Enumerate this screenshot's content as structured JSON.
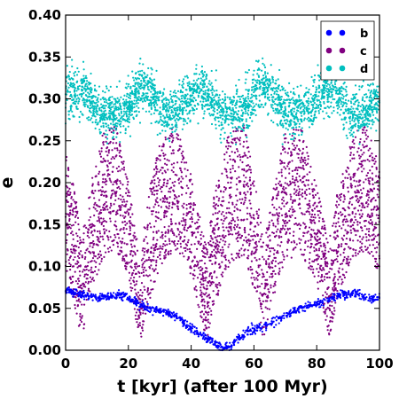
{
  "chart_data": {
    "type": "scatter",
    "title": "",
    "xlabel": "t [kyr] (after 100 Myr)",
    "ylabel": "e",
    "xlim": [
      0,
      100
    ],
    "ylim": [
      0,
      0.4
    ],
    "xticks": [
      0,
      20,
      40,
      60,
      80,
      100
    ],
    "xtick_labels": [
      "0",
      "20",
      "40",
      "60",
      "80",
      "100"
    ],
    "yticks": [
      0,
      0.05,
      0.1,
      0.15,
      0.2,
      0.25,
      0.3,
      0.35,
      0.4
    ],
    "ytick_labels": [
      "0.00",
      "0.05",
      "0.10",
      "0.15",
      "0.20",
      "0.25",
      "0.30",
      "0.35",
      "0.40"
    ],
    "grid": false,
    "legend_position": "top-right",
    "series": [
      {
        "name": "b",
        "color": "#0000ff",
        "description_trend": [
          [
            0,
            0.072
          ],
          [
            5,
            0.066
          ],
          [
            10,
            0.062
          ],
          [
            15,
            0.065
          ],
          [
            18,
            0.066
          ],
          [
            22,
            0.058
          ],
          [
            26,
            0.05
          ],
          [
            30,
            0.047
          ],
          [
            34,
            0.043
          ],
          [
            38,
            0.032
          ],
          [
            42,
            0.02
          ],
          [
            46,
            0.012
          ],
          [
            50,
            0.002
          ],
          [
            52,
            0.004
          ],
          [
            55,
            0.014
          ],
          [
            60,
            0.025
          ],
          [
            64,
            0.03
          ],
          [
            68,
            0.038
          ],
          [
            72,
            0.045
          ],
          [
            76,
            0.052
          ],
          [
            80,
            0.055
          ],
          [
            84,
            0.06
          ],
          [
            88,
            0.068
          ],
          [
            92,
            0.068
          ],
          [
            96,
            0.062
          ],
          [
            100,
            0.062
          ]
        ]
      },
      {
        "name": "c",
        "color": "#800080",
        "envelope_low": [
          [
            0,
            0.09
          ],
          [
            3,
            0.05
          ],
          [
            5,
            0.01
          ],
          [
            8,
            0.07
          ],
          [
            12,
            0.11
          ],
          [
            16,
            0.12
          ],
          [
            20,
            0.09
          ],
          [
            22,
            0.04
          ],
          [
            24,
            0.01
          ],
          [
            26,
            0.05
          ],
          [
            30,
            0.1
          ],
          [
            35,
            0.12
          ],
          [
            40,
            0.09
          ],
          [
            43,
            0.04
          ],
          [
            45,
            0.01
          ],
          [
            47,
            0.05
          ],
          [
            52,
            0.1
          ],
          [
            57,
            0.11
          ],
          [
            61,
            0.06
          ],
          [
            63,
            0.01
          ],
          [
            66,
            0.06
          ],
          [
            70,
            0.11
          ],
          [
            75,
            0.11
          ],
          [
            80,
            0.08
          ],
          [
            84,
            0.01
          ],
          [
            87,
            0.07
          ],
          [
            92,
            0.11
          ],
          [
            96,
            0.12
          ],
          [
            100,
            0.09
          ]
        ],
        "envelope_high": [
          [
            0,
            0.24
          ],
          [
            3,
            0.19
          ],
          [
            5,
            0.13
          ],
          [
            8,
            0.2
          ],
          [
            12,
            0.26
          ],
          [
            16,
            0.27
          ],
          [
            20,
            0.2
          ],
          [
            22,
            0.15
          ],
          [
            24,
            0.11
          ],
          [
            26,
            0.18
          ],
          [
            30,
            0.25
          ],
          [
            35,
            0.27
          ],
          [
            40,
            0.21
          ],
          [
            43,
            0.16
          ],
          [
            45,
            0.12
          ],
          [
            47,
            0.18
          ],
          [
            52,
            0.26
          ],
          [
            57,
            0.27
          ],
          [
            61,
            0.19
          ],
          [
            63,
            0.13
          ],
          [
            66,
            0.19
          ],
          [
            70,
            0.26
          ],
          [
            75,
            0.27
          ],
          [
            80,
            0.2
          ],
          [
            84,
            0.12
          ],
          [
            87,
            0.2
          ],
          [
            92,
            0.26
          ],
          [
            96,
            0.27
          ],
          [
            100,
            0.22
          ]
        ]
      },
      {
        "name": "d",
        "color": "#00bfbf",
        "description_trend": [
          [
            0,
            0.305
          ],
          [
            5,
            0.315
          ],
          [
            10,
            0.29
          ],
          [
            15,
            0.28
          ],
          [
            20,
            0.29
          ],
          [
            24,
            0.32
          ],
          [
            28,
            0.3
          ],
          [
            33,
            0.28
          ],
          [
            38,
            0.295
          ],
          [
            43,
            0.315
          ],
          [
            48,
            0.29
          ],
          [
            53,
            0.28
          ],
          [
            58,
            0.29
          ],
          [
            63,
            0.32
          ],
          [
            67,
            0.3
          ],
          [
            72,
            0.28
          ],
          [
            78,
            0.29
          ],
          [
            82,
            0.31
          ],
          [
            86,
            0.305
          ],
          [
            91,
            0.28
          ],
          [
            96,
            0.285
          ],
          [
            100,
            0.3
          ]
        ],
        "spread": 0.025
      }
    ]
  }
}
